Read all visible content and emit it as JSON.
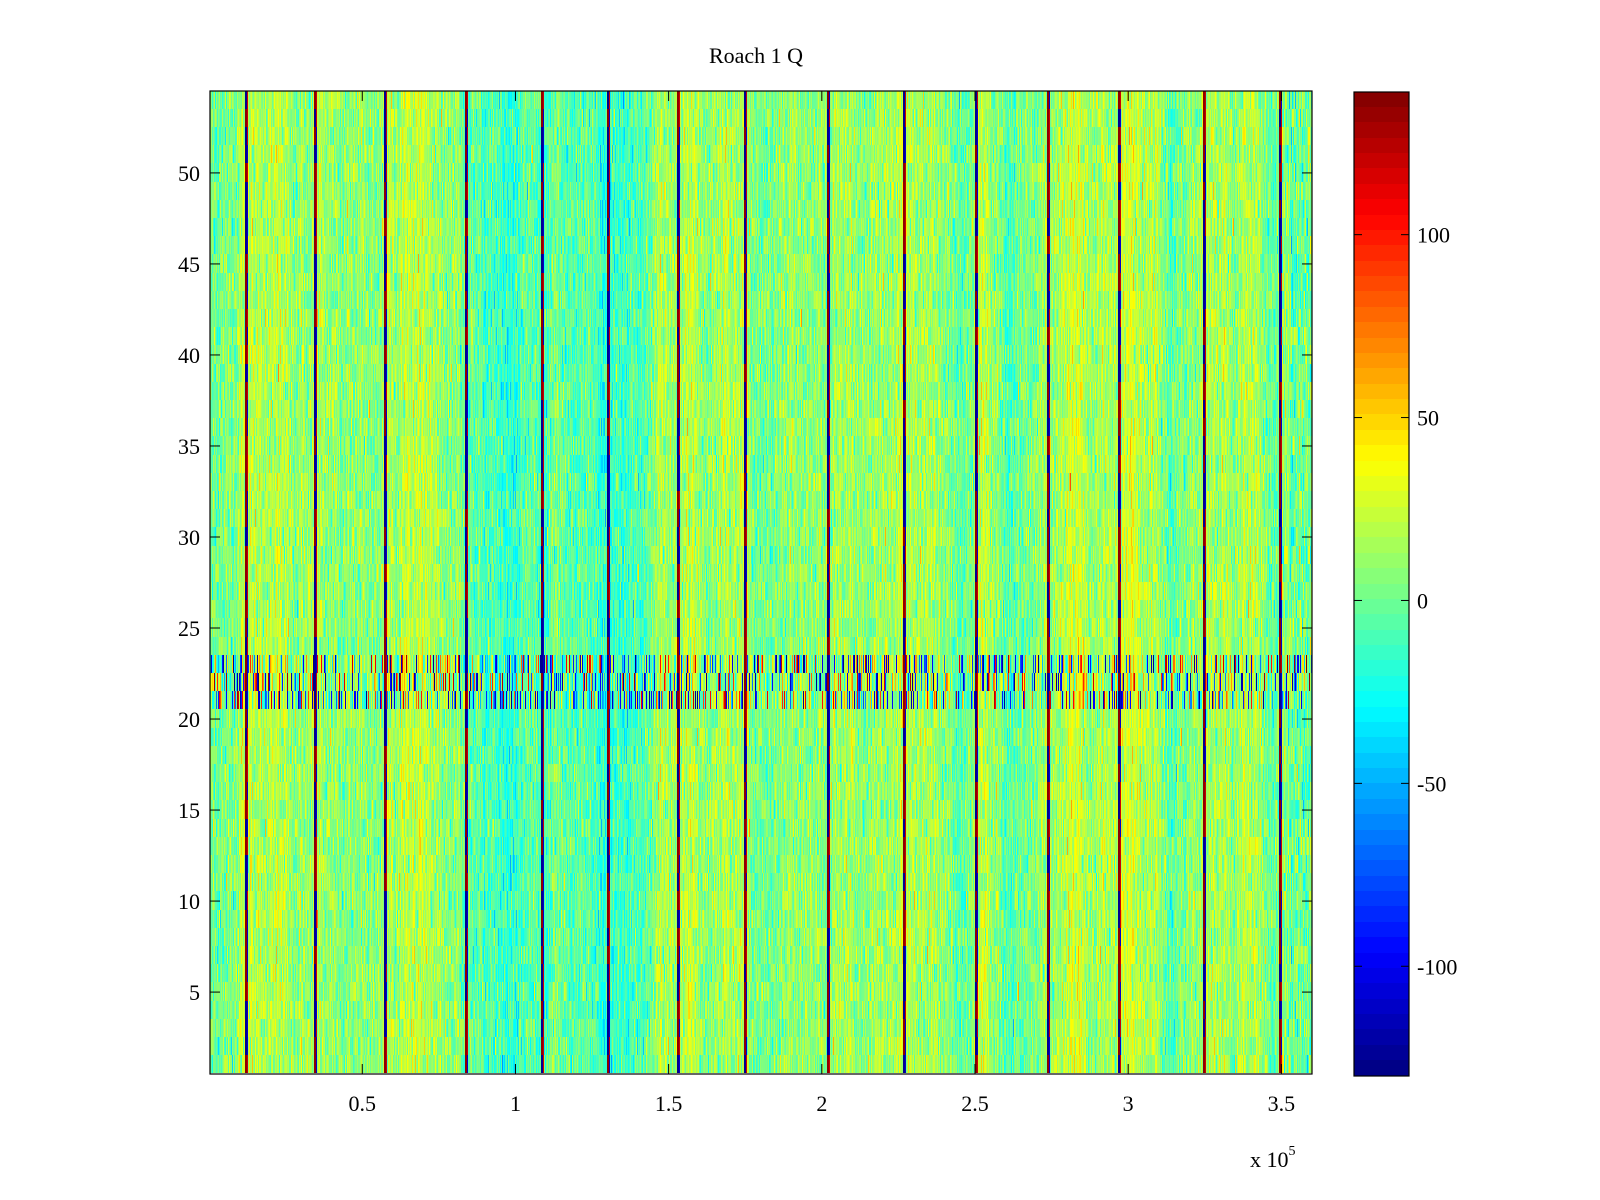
{
  "chart_data": {
    "type": "heatmap",
    "title": "Roach 1 Q",
    "xlabel": "",
    "ylabel": "",
    "x_axis": {
      "ticks": [
        0.5,
        1,
        1.5,
        2,
        2.5,
        3,
        3.5
      ],
      "tick_labels": [
        "0.5",
        "1",
        "1.5",
        "2",
        "2.5",
        "3",
        "3.5"
      ],
      "lim": [
        0.003,
        3.6
      ],
      "exponent_label": "x 10",
      "exponent_power": "5"
    },
    "y_axis": {
      "ticks": [
        5,
        10,
        15,
        20,
        25,
        30,
        35,
        40,
        45,
        50
      ],
      "tick_labels": [
        "5",
        "10",
        "15",
        "20",
        "25",
        "30",
        "35",
        "40",
        "45",
        "50"
      ],
      "lim": [
        0.5,
        54.5
      ]
    },
    "colorbar": {
      "colormap": "jet",
      "range": [
        -130,
        139
      ],
      "ticks": [
        100,
        50,
        0,
        -50,
        -100
      ],
      "tick_labels": [
        "100",
        "50",
        "0",
        "-50",
        "-100"
      ]
    },
    "rows": 54,
    "noisy_rows": [
      21,
      22,
      23
    ],
    "background_level": 5,
    "spike_lines_x": [
      0.116,
      0.342,
      0.57,
      0.836,
      1.084,
      1.3,
      1.526,
      1.746,
      2.016,
      2.266,
      2.5,
      2.734,
      2.966,
      3.244,
      3.492
    ]
  },
  "colors": {
    "background": "#ffffff",
    "axes": "#000000"
  }
}
